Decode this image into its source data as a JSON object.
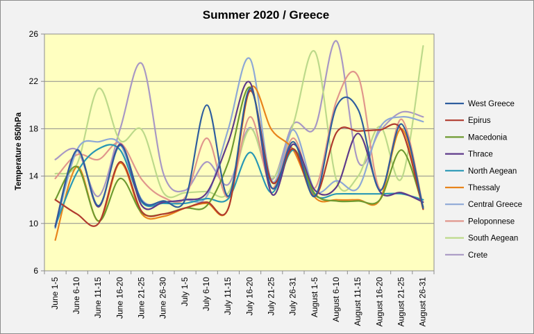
{
  "chart_data": {
    "type": "line",
    "title": "Summer 2020 / Greece",
    "xlabel": "",
    "ylabel": "Temperature 850hPa",
    "ylim": [
      6,
      26
    ],
    "yticks": [
      6,
      10,
      14,
      18,
      22,
      26
    ],
    "grid": "horizontal",
    "legend_position": "right",
    "plot_background": "#ffffc0",
    "categories": [
      "June 1-5",
      "June 6-10",
      "June 11-15",
      "June 16-20",
      "June 21-25",
      "June 26-30",
      "July 1-5",
      "July 6-10",
      "July 11-15",
      "July 16-20",
      "July 21-25",
      "July 26-31",
      "August 1-5",
      "August 6-10",
      "August 11-15",
      "August 16-20",
      "August 21-25",
      "August 26-31"
    ],
    "series": [
      {
        "name": "West Greece",
        "color": "#2e5e9e",
        "values": [
          9.7,
          16.2,
          11.5,
          16.6,
          11.9,
          11.9,
          12.0,
          20.0,
          12.3,
          21.4,
          13.0,
          16.9,
          12.3,
          19.9,
          19.6,
          12.8,
          18.4,
          11.3
        ]
      },
      {
        "name": "Epirus",
        "color": "#b03a2e",
        "values": [
          12.0,
          10.8,
          10.0,
          15.2,
          11.0,
          10.8,
          11.3,
          11.8,
          11.3,
          21.2,
          13.5,
          16.3,
          12.3,
          17.7,
          17.8,
          17.9,
          17.9,
          11.2
        ]
      },
      {
        "name": "Macedonia",
        "color": "#6e9a30",
        "values": [
          12.0,
          14.8,
          10.2,
          13.8,
          10.9,
          10.8,
          11.3,
          11.5,
          15.2,
          21.5,
          13.5,
          16.3,
          12.5,
          11.9,
          11.9,
          12.0,
          16.2,
          11.4
        ]
      },
      {
        "name": "Thrace",
        "color": "#5e3a8a",
        "values": [
          9.8,
          16.2,
          11.4,
          16.7,
          11.5,
          11.8,
          12.0,
          12.6,
          16.9,
          21.9,
          12.5,
          16.7,
          12.8,
          13.1,
          17.6,
          12.7,
          12.6,
          11.8
        ]
      },
      {
        "name": "North Aegean",
        "color": "#2897b5",
        "values": [
          9.8,
          14.3,
          16.3,
          16.2,
          11.8,
          11.7,
          11.7,
          12.1,
          12.1,
          16.0,
          12.6,
          16.2,
          12.4,
          12.5,
          12.5,
          12.5,
          12.5,
          12.0
        ]
      },
      {
        "name": "Thessaly",
        "color": "#e8841c",
        "values": [
          8.6,
          14.8,
          10.2,
          15.1,
          10.8,
          10.6,
          11.3,
          11.7,
          11.3,
          21.4,
          17.9,
          16.2,
          12.2,
          12.0,
          12.0,
          12.0,
          18.0,
          11.2
        ]
      },
      {
        "name": "Central Greece",
        "color": "#8ea8d6",
        "values": [
          9.6,
          16.2,
          16.9,
          16.7,
          12.0,
          11.8,
          12.0,
          12.3,
          18.0,
          23.9,
          13.6,
          17.9,
          12.8,
          13.6,
          13.0,
          18.1,
          19.0,
          18.6
        ]
      },
      {
        "name": "Peloponnese",
        "color": "#e0968c",
        "values": [
          13.8,
          15.8,
          15.4,
          16.8,
          13.7,
          12.2,
          12.2,
          17.2,
          12.2,
          19.0,
          13.0,
          17.2,
          13.0,
          20.4,
          22.4,
          12.9,
          18.8,
          11.4
        ]
      },
      {
        "name": "South Aegean",
        "color": "#bcd98a",
        "values": [
          14.2,
          15.0,
          21.4,
          17.0,
          17.9,
          12.6,
          12.6,
          12.7,
          12.6,
          18.0,
          13.8,
          18.4,
          24.5,
          13.6,
          14.0,
          18.2,
          13.8,
          25.0
        ]
      },
      {
        "name": "Crete",
        "color": "#a898c4",
        "values": [
          15.4,
          16.2,
          12.3,
          18.0,
          23.5,
          14.2,
          12.8,
          15.2,
          13.3,
          18.1,
          13.7,
          18.4,
          18.1,
          25.4,
          15.2,
          17.8,
          19.4,
          19.0
        ]
      }
    ]
  }
}
